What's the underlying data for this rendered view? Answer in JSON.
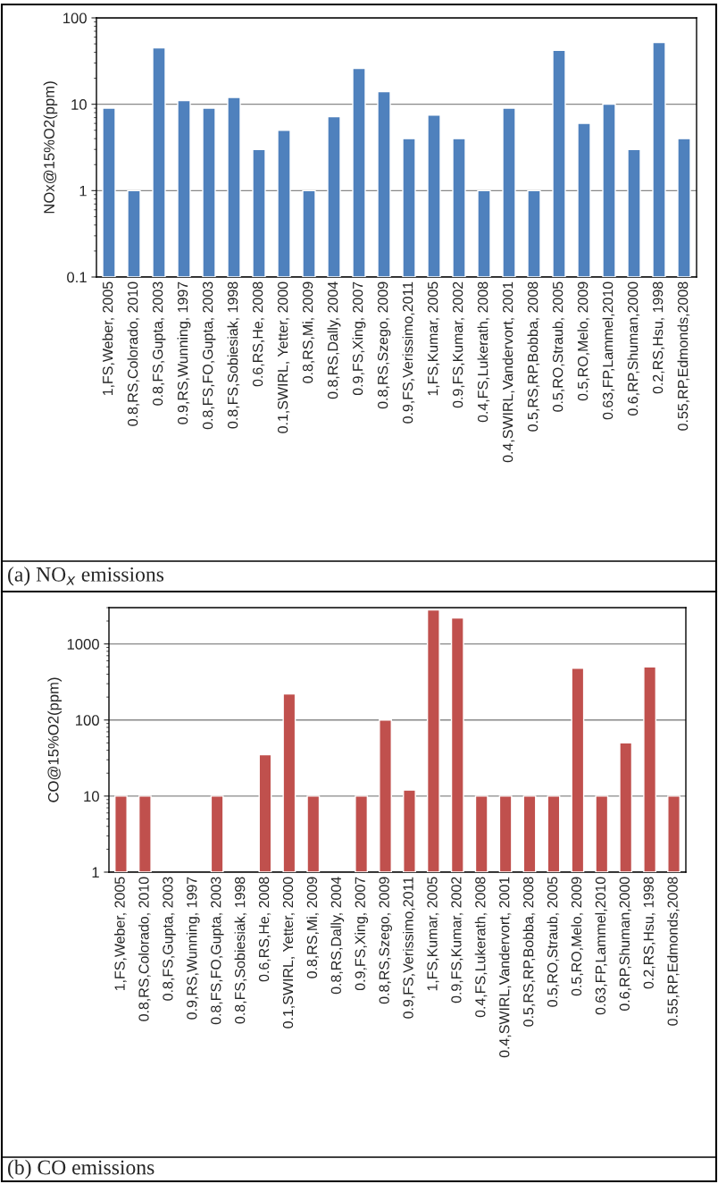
{
  "chart_data": [
    {
      "type": "bar",
      "ylabel": "NOx@15%O2(ppm)",
      "log": true,
      "ylim": [
        0.1,
        100
      ],
      "yticks": [
        0.1,
        1,
        10,
        100
      ],
      "grid": "y",
      "categories": [
        "1,FS,Weber, 2005",
        "0.8,RS,Colorado, 2010",
        "0.8,FS,Gupta, 2003",
        "0.9,RS,Wunning, 1997",
        "0.8,FS,FO,Gupta, 2003",
        "0.8,FS,Sobiesiak, 1998",
        "0.6,RS,He, 2008",
        "0.1,SWIRL, Yetter, 2000",
        "0.8,RS,Mi, 2009",
        "0.8,RS,Dally, 2004",
        "0.9,FS,Xing, 2007",
        "0.8,RS,Szego, 2009",
        "0.9,FS,Verissimo,2011",
        "1,FS,Kumar, 2005",
        "0.9,FS,Kumar, 2002",
        "0.4,FS,Lukerath, 2008",
        "0.4,SWIRL,Vandervort, 2001",
        "0.5,RS,RP,Bobba, 2008",
        "0.5,RO,Straub, 2005",
        "0.5,RO,Melo, 2009",
        "0.63,FP,Lammel,2010",
        "0.6,RP,Shuman,2000",
        "0.2,RS,Hsu, 1998",
        "0.55,RP,Edmonds,2008"
      ],
      "series": [
        {
          "color": "#4f81bd",
          "values": [
            9,
            1,
            45,
            11,
            9,
            12,
            3,
            5,
            1,
            7.2,
            26,
            14,
            4,
            7.5,
            4,
            1,
            9,
            1,
            42,
            6,
            10,
            3,
            52,
            4
          ]
        }
      ],
      "annotations": [
        "(a) NO$_{x}$ emissions"
      ]
    },
    {
      "type": "bar",
      "ylabel": "CO@15%O2(ppm)",
      "log": true,
      "ylim": [
        1,
        3000
      ],
      "yticks": [
        1,
        10,
        100,
        1000
      ],
      "grid": "y",
      "categories": [
        "1,FS,Weber, 2005",
        "0.8,RS,Colorado, 2010",
        "0.8,FS,Gupta, 2003",
        "0.9,RS,Wunning, 1997",
        "0.8,FS,FO,Gupta, 2003",
        "0.8,FS,Sobiesiak, 1998",
        "0.6,RS,He, 2008",
        "0.1,SWIRL, Yetter, 2000",
        "0.8,RS,Mi, 2009",
        "0.8,RS,Dally, 2004",
        "0.9,FS,Xing, 2007",
        "0.8,RS,Szego, 2009",
        "0.9,FS,Verissimo,2011",
        "1,FS,Kumar, 2005",
        "0.9,FS,Kumar, 2002",
        "0.4,FS,Lukerath, 2008",
        "0.4,SWIRL,Vandervort, 2001",
        "0.5,RS,RP,Bobba, 2008",
        "0.5,RO,Straub, 2005",
        "0.5,RO,Melo, 2009",
        "0.63,FP,Lammel,2010",
        "0.6,RP,Shuman,2000",
        "0.2,RS,Hsu, 1998",
        "0.55,RP,Edmonds,2008"
      ],
      "series": [
        {
          "color": "#c0504d",
          "values": [
            10,
            10,
            null,
            null,
            10,
            null,
            35,
            220,
            10,
            null,
            10,
            100,
            12,
            2800,
            2200,
            10,
            10,
            10,
            10,
            480,
            10,
            50,
            500,
            10
          ]
        }
      ],
      "annotations": [
        "(b) CO emissions"
      ]
    }
  ]
}
